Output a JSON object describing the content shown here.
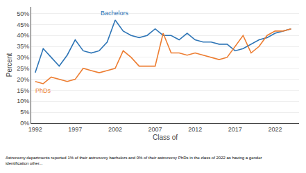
{
  "chart_data": {
    "type": "line",
    "x": [
      1992,
      1993,
      1994,
      1995,
      1996,
      1997,
      1998,
      1999,
      2000,
      2001,
      2002,
      2003,
      2004,
      2005,
      2006,
      2007,
      2008,
      2009,
      2010,
      2011,
      2012,
      2013,
      2014,
      2015,
      2016,
      2017,
      2018,
      2019,
      2020,
      2021,
      2022,
      2023,
      2024
    ],
    "series": [
      {
        "name": "Bachelors",
        "color": "#2e75b6",
        "values": [
          23,
          34,
          30,
          26,
          31,
          38,
          33,
          32,
          33,
          37,
          47,
          42,
          40,
          39,
          40,
          43,
          40,
          40,
          38,
          41,
          38,
          37,
          37,
          36,
          36,
          33,
          34,
          36,
          38,
          39,
          41,
          42,
          43
        ]
      },
      {
        "name": "PhDs",
        "color": "#ed7d31",
        "values": [
          19,
          18,
          21,
          20,
          19,
          20,
          25,
          24,
          23,
          24,
          25,
          33,
          30,
          26,
          26,
          26,
          41,
          32,
          32,
          31,
          32,
          31,
          30,
          29,
          30,
          35,
          40,
          32,
          35,
          40,
          42,
          42,
          43
        ]
      }
    ],
    "xlabel": "Class of",
    "ylabel": "Percent",
    "xlim": [
      1991.5,
      2025
    ],
    "ylim": [
      0,
      53
    ],
    "xticks": [
      1992,
      1997,
      2002,
      2007,
      2012,
      2017,
      2022
    ],
    "yticks": [
      {
        "value": 0,
        "label": "0%"
      },
      {
        "value": 5,
        "label": "5%"
      },
      {
        "value": 10,
        "label": "10%"
      },
      {
        "value": 15,
        "label": "15%"
      },
      {
        "value": 20,
        "label": "20%"
      },
      {
        "value": 25,
        "label": "25%"
      },
      {
        "value": 30,
        "label": "30%"
      },
      {
        "value": 35,
        "label": "35%"
      },
      {
        "value": 40,
        "label": "40%"
      },
      {
        "value": 45,
        "label": "45%"
      },
      {
        "value": 50,
        "label": "50%"
      }
    ],
    "grid": true,
    "annotations": [
      "Astronomy departments reported 1% of their astronomy bachelors and 0% of their astronomy PhDs in the class of 2022 as having a gender\nidentification other..."
    ]
  }
}
